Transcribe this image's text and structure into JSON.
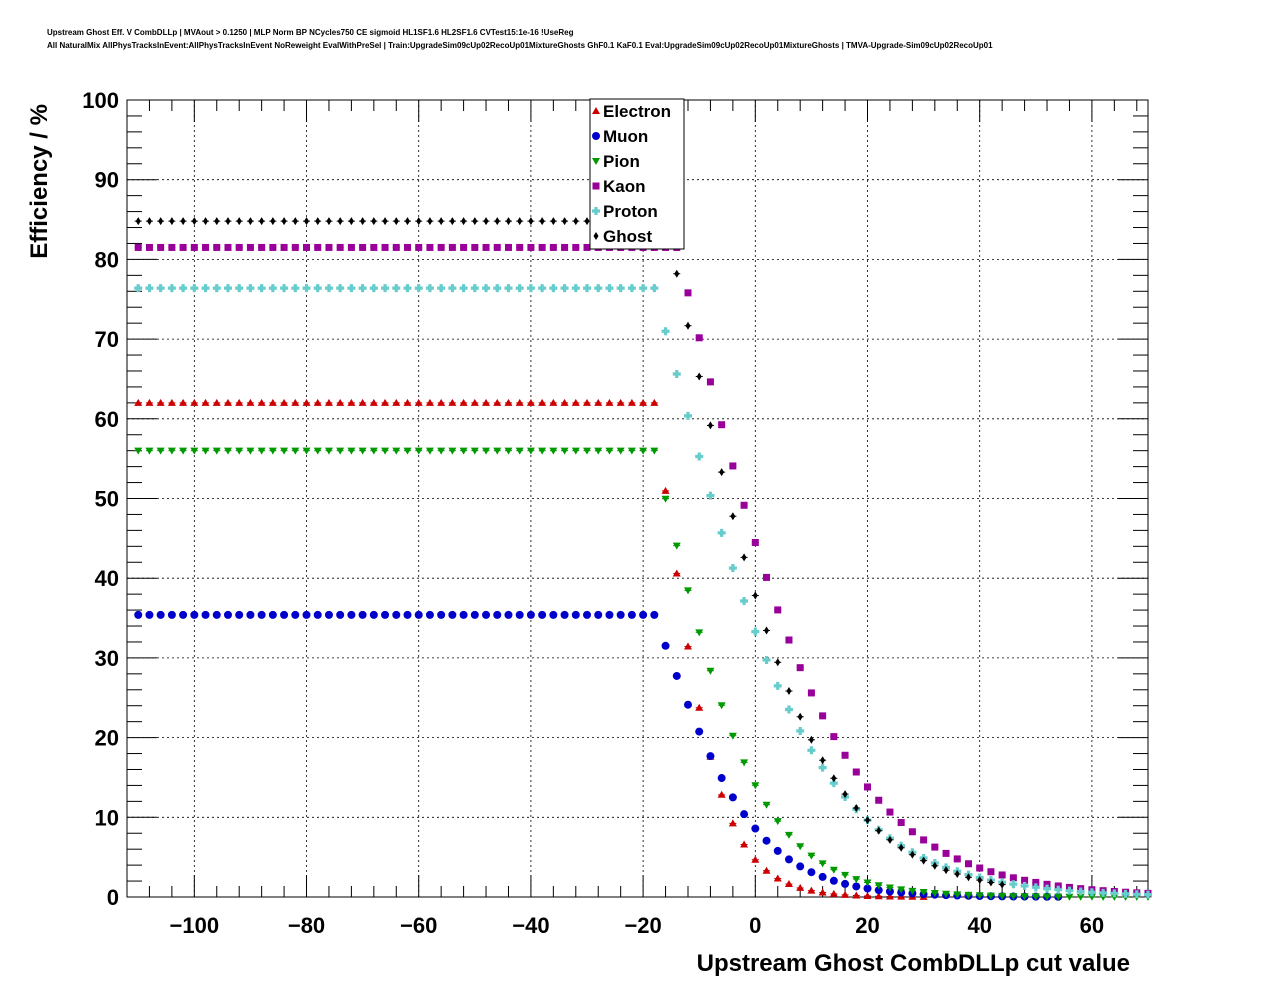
{
  "title_lines": [
    "Upstream Ghost Eff. V CombDLLp | MVAout > 0.1250 | MLP Norm BP NCycles750 CE sigmoid HL1SF1.6 HL2SF1.6 CVTest15:1e-16 !UseReg",
    "All NaturalMix AllPhysTracksInEvent:AllPhysTracksInEvent NoReweight EvalWithPreSel | Train:UpgradeSim09cUp02RecoUp01MixtureGhosts GhF0.1 KaF0.1 Eval:UpgradeSim09cUp02RecoUp01MixtureGhosts | TMVA-Upgrade-Sim09cUp02RecoUp01"
  ],
  "chart_data": {
    "type": "scatter",
    "xlabel": "Upstream Ghost CombDLLp cut value",
    "ylabel": "Efficiency / %",
    "xlim": [
      -112,
      70
    ],
    "ylim": [
      0,
      100
    ],
    "xticks": [
      -100,
      -80,
      -60,
      -40,
      -20,
      0,
      20,
      40,
      60
    ],
    "xtick_labels": [
      "−100",
      "−80",
      "−60",
      "−40",
      "−20",
      "0",
      "20",
      "40",
      "60"
    ],
    "yticks": [
      0,
      10,
      20,
      30,
      40,
      50,
      60,
      70,
      80,
      90,
      100
    ],
    "ytick_labels": [
      "0",
      "10",
      "20",
      "30",
      "40",
      "50",
      "60",
      "70",
      "80",
      "90",
      "100"
    ],
    "grid": true,
    "legend_position": "top-center",
    "series": [
      {
        "name": "Electron",
        "color": "#cc0000",
        "marker": "triangle-up",
        "plateau": 62.0,
        "x0": -18,
        "k": 0.18,
        "xmax": 30,
        "tail": 0.0
      },
      {
        "name": "Muon",
        "color": "#0000cc",
        "marker": "circle",
        "plateau": 35.4,
        "x0": -18,
        "k": 0.11,
        "xmax": 54,
        "tail": 0.0
      },
      {
        "name": "Pion",
        "color": "#009900",
        "marker": "triangle-down",
        "plateau": 56.0,
        "x0": -18,
        "k": 0.108,
        "xmax": 70,
        "tail": 0.0
      },
      {
        "name": "Kaon",
        "color": "#990099",
        "marker": "square",
        "plateau": 81.5,
        "x0": -14,
        "k": 0.07,
        "xmax": 70,
        "tail": 0.0
      },
      {
        "name": "Proton",
        "color": "#66cccc",
        "marker": "cross",
        "plateau": 76.4,
        "x0": -18,
        "k": 0.071,
        "xmax": 70,
        "tail": 0.0
      },
      {
        "name": "Ghost",
        "color": "#000000",
        "marker": "diamond",
        "plateau": 84.8,
        "x0": -16,
        "k": 0.078,
        "xmax": 44,
        "tail": 0.0
      }
    ]
  }
}
